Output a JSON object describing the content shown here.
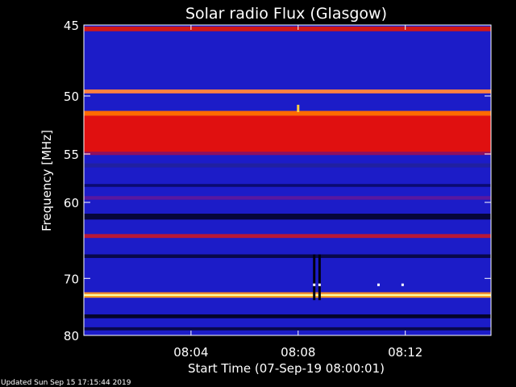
{
  "chart_data": {
    "type": "heatmap",
    "title": "Solar radio Flux (Glasgow)",
    "xlabel": "Start Time (07-Sep-19 08:00:01)",
    "ylabel": "Frequency [MHz]",
    "x_unit": "minutes",
    "x_range": [
      0,
      15.2
    ],
    "ylim": [
      45,
      80
    ],
    "y_scale": "reciprocal",
    "x_ticks": [
      {
        "value": 4,
        "label": "08:04"
      },
      {
        "value": 8,
        "label": "08:08"
      },
      {
        "value": 12,
        "label": "08:12"
      }
    ],
    "y_ticks": [
      {
        "value": 45,
        "label": "45"
      },
      {
        "value": 50,
        "label": "50"
      },
      {
        "value": 55,
        "label": "55"
      },
      {
        "value": 60,
        "label": "60"
      },
      {
        "value": 70,
        "label": "70"
      },
      {
        "value": 80,
        "label": "80"
      }
    ],
    "colorscale": [
      "#000000",
      "#0a0a60",
      "#1a1aa0",
      "#2a2ae0",
      "#6010a0",
      "#c01020",
      "#ff2000",
      "#ff8000",
      "#ffff80"
    ],
    "background_color": "#1c1cc8",
    "bands": [
      {
        "mhz_from": 45.1,
        "mhz_to": 45.4,
        "color": "#d01818"
      },
      {
        "mhz_from": 49.5,
        "mhz_to": 49.8,
        "color": "#ff8040"
      },
      {
        "mhz_from": 51.2,
        "mhz_to": 51.6,
        "color": "#ff6a00"
      },
      {
        "mhz_from": 51.6,
        "mhz_to": 54.8,
        "color": "#e01010"
      },
      {
        "mhz_from": 54.8,
        "mhz_to": 55.1,
        "color": "#901060"
      },
      {
        "mhz_from": 55.9,
        "mhz_to": 56.3,
        "color": "#2020a0"
      },
      {
        "mhz_from": 58.0,
        "mhz_to": 58.3,
        "color": "#0a0a70"
      },
      {
        "mhz_from": 59.3,
        "mhz_to": 59.7,
        "color": "#5818a0"
      },
      {
        "mhz_from": 61.3,
        "mhz_to": 62.0,
        "color": "#06063a"
      },
      {
        "mhz_from": 63.8,
        "mhz_to": 64.3,
        "color": "#b81838"
      },
      {
        "mhz_from": 66.5,
        "mhz_to": 67.0,
        "color": "#08084a"
      },
      {
        "mhz_from": 72.2,
        "mhz_to": 72.5,
        "color": "#ff9020"
      },
      {
        "mhz_from": 72.5,
        "mhz_to": 72.8,
        "color": "#ffffa0"
      },
      {
        "mhz_from": 72.8,
        "mhz_to": 73.1,
        "color": "#ffa020"
      },
      {
        "mhz_from": 76.0,
        "mhz_to": 76.7,
        "color": "#04042a"
      },
      {
        "mhz_from": 78.4,
        "mhz_to": 79.0,
        "color": "#08084a"
      }
    ],
    "bursts": [
      {
        "minute": 8.6,
        "mhz_from": 66.5,
        "mhz_to": 73.5,
        "color": "#000010"
      },
      {
        "minute": 8.8,
        "mhz_from": 66.5,
        "mhz_to": 73.5,
        "color": "#000010"
      },
      {
        "minute": 8.6,
        "mhz_from": 70.8,
        "mhz_to": 71.2,
        "color": "#ffffff"
      },
      {
        "minute": 8.8,
        "mhz_from": 70.8,
        "mhz_to": 71.2,
        "color": "#ffffff"
      },
      {
        "minute": 11.0,
        "mhz_from": 70.8,
        "mhz_to": 71.2,
        "color": "#ffffff"
      },
      {
        "minute": 11.9,
        "mhz_from": 70.8,
        "mhz_to": 71.2,
        "color": "#ffffff"
      },
      {
        "minute": 8.0,
        "mhz_from": 50.7,
        "mhz_to": 51.3,
        "color": "#ffd040"
      }
    ]
  },
  "footer": {
    "updated": "Updated Sun Sep 15 17:15:44 2019"
  }
}
